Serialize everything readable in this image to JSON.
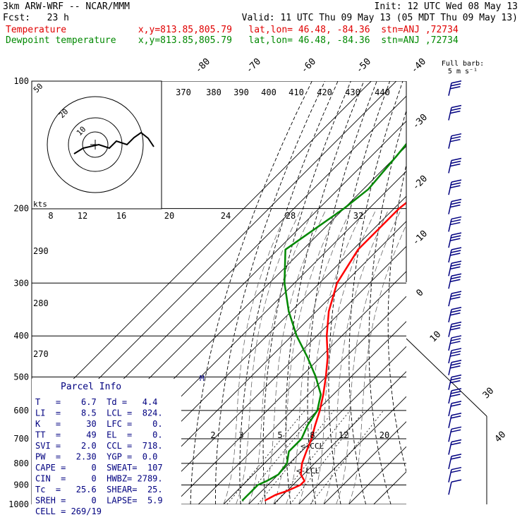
{
  "header": {
    "model": "3km ARW-WRF -- NCAR/MMM",
    "init": "Init: 12 UTC Wed 08 May 13",
    "fcst": "Fcst:   23 h",
    "valid": "Valid: 11 UTC Thu 09 May 13 (05 MDT Thu 09 May 13)",
    "temp_line": "Temperature             x,y=813.85,805.79   lat,lon= 46.48, -84.36  stn=ANJ ,72734",
    "dew_line": "Dewpoint temperature    x,y=813.85,805.79   lat,lon= 46.48, -84.36  stn=ANJ ,72734"
  },
  "colors": {
    "temperature": "#ff0000",
    "dewpoint": "#008800",
    "parcel": "#000080",
    "grid": "#000000"
  },
  "barb_key": {
    "line1": "Full barb:",
    "line2": "5 m s⁻¹"
  },
  "parcel_info": {
    "title": "Parcel Info",
    "lines": [
      "T   =    6.7  Td =   4.4",
      "LI  =    8.5  LCL =  824.",
      "K   =     30  LFC =    0.",
      "TT  =     49  EL  =    0.",
      "SVI =    2.0  CCL =  718.",
      "PW  =   2.30  YGP =  0.0",
      "CAPE =     0  SWEAT=  107",
      "CIN  =     0  HWBZ= 2789.",
      "Tc  =   25.6  SHEAR=  25.",
      "SREH =     0  LAPSE=  5.9",
      "CELL = 269/19"
    ]
  },
  "hodograph": {
    "speed_unit": "kts",
    "labels": [
      "20",
      "10",
      "5"
    ]
  },
  "chart_data": {
    "type": "line",
    "title": "",
    "pressure_levels": [
      100,
      200,
      300,
      400,
      500,
      600,
      700,
      800,
      900,
      1000
    ],
    "isotherm_labels": [
      "-80",
      "-70",
      "-60",
      "-50",
      "-40",
      "-30",
      "-20",
      "-10",
      "0",
      "10",
      "30",
      "40"
    ],
    "theta_labels": [
      "370",
      "380",
      "390",
      "400",
      "410",
      "420",
      "430",
      "440"
    ],
    "hodo_speed_labels": [
      "8",
      "12",
      "16",
      "20",
      "24",
      "28",
      "32"
    ],
    "theta_side_labels": [
      "290",
      "280",
      "270"
    ],
    "mixing_ratio_labels": [
      "2",
      "3",
      "5",
      "8",
      "12",
      "20"
    ],
    "annotations": [
      "<-CCL",
      "<-LCL",
      "M"
    ],
    "series": [
      {
        "name": "Temperature",
        "p": [
          100,
          150,
          180,
          200,
          250,
          300,
          350,
          400,
          450,
          500,
          550,
          600,
          650,
          700,
          750,
          800,
          850,
          880,
          900,
          930,
          950,
          980
        ],
        "t": [
          -59,
          -53,
          -56,
          -58,
          -58,
          -53,
          -45,
          -36,
          -27,
          -20,
          -14,
          -9,
          -5,
          -1,
          2,
          5,
          9,
          13,
          13,
          10,
          7,
          5
        ]
      },
      {
        "name": "Dewpoint temperature",
        "p": [
          100,
          120,
          150,
          180,
          200,
          250,
          300,
          350,
          400,
          450,
          500,
          550,
          600,
          650,
          700,
          750,
          800,
          850,
          880,
          900,
          930,
          950,
          980
        ],
        "t": [
          -76,
          -83,
          -80,
          -78,
          -80,
          -87,
          -74,
          -61,
          -48,
          -35,
          -24,
          -15,
          -10,
          -8,
          -5,
          -5,
          -1,
          0,
          -2,
          -4,
          -4,
          -4,
          -4
        ]
      }
    ],
    "wind_barbs_p": [
      105,
      120,
      140,
      160,
      180,
      200,
      220,
      240,
      260,
      280,
      300,
      330,
      360,
      390,
      420,
      450,
      480,
      520,
      560,
      600,
      640,
      690,
      740,
      800,
      860,
      920
    ],
    "wind_barbs_speed_kt": [
      50,
      50,
      50,
      50,
      50,
      50,
      50,
      50,
      50,
      45,
      45,
      45,
      40,
      40,
      35,
      35,
      35,
      30,
      30,
      25,
      25,
      20,
      20,
      20,
      20,
      15
    ]
  }
}
